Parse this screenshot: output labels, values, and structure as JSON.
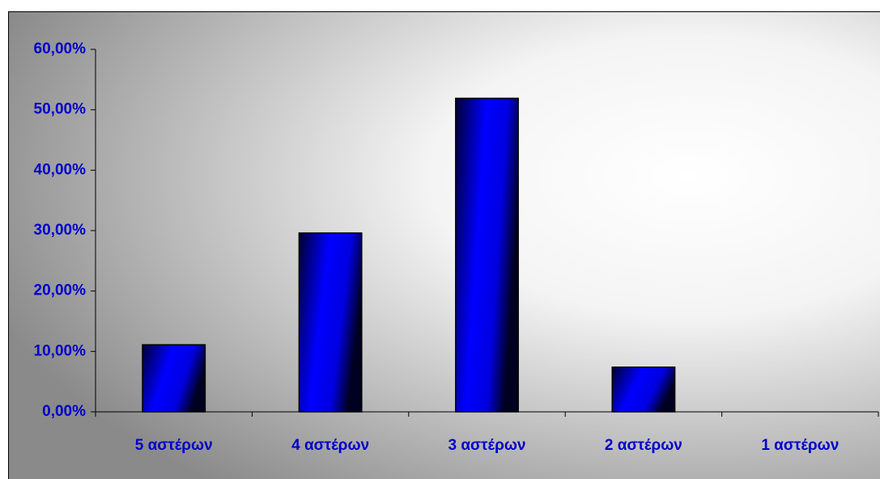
{
  "chart_data": {
    "type": "bar",
    "categories": [
      "5 αστέρων",
      "4 αστέρων",
      "3 αστέρων",
      "2 αστέρων",
      "1 αστέρων"
    ],
    "values": [
      11.1,
      29.6,
      51.9,
      7.4,
      0
    ],
    "color": "#0000ff",
    "ylim": [
      0,
      60
    ],
    "yticks": [
      {
        "value": 0,
        "label": "0,00%"
      },
      {
        "value": 10,
        "label": "10,00%"
      },
      {
        "value": 20,
        "label": "20,00%"
      },
      {
        "value": 30,
        "label": "30,00%"
      },
      {
        "value": 40,
        "label": "40,00%"
      },
      {
        "value": 50,
        "label": "50,00%"
      },
      {
        "value": 60,
        "label": "60,00%"
      }
    ],
    "grid": false
  }
}
